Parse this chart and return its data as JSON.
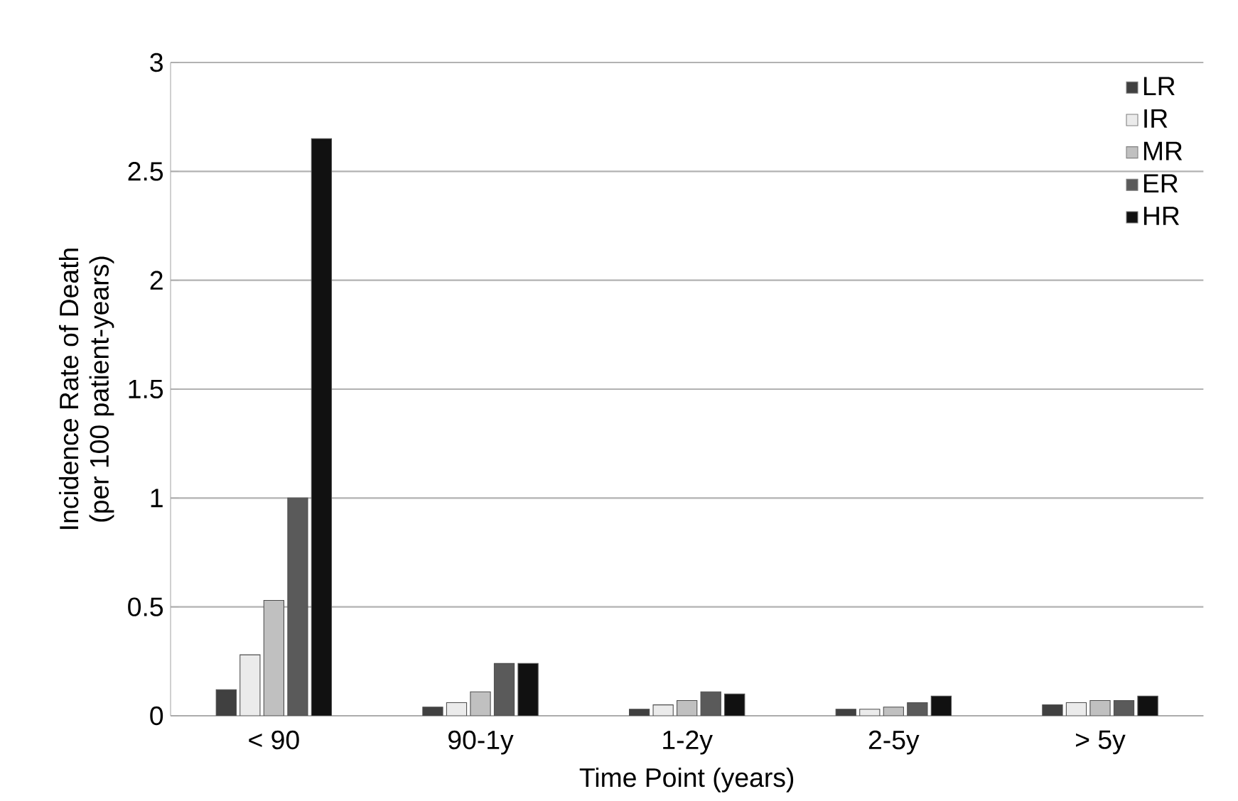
{
  "chart_data": {
    "type": "bar",
    "xlabel": "Time Point (years)",
    "ylabel": "Incidence Rate of Death\n(per 100 patient-years)",
    "categories": [
      "< 90",
      "90-1y",
      "1-2y",
      "2-5y",
      "> 5y"
    ],
    "series": [
      {
        "name": "LR",
        "color": "#404040",
        "values": [
          0.12,
          0.04,
          0.03,
          0.03,
          0.05
        ]
      },
      {
        "name": "IR",
        "color": "#ebebeb",
        "values": [
          0.28,
          0.06,
          0.05,
          0.03,
          0.06
        ]
      },
      {
        "name": "MR",
        "color": "#c0c0c0",
        "values": [
          0.53,
          0.11,
          0.07,
          0.04,
          0.07
        ]
      },
      {
        "name": "ER",
        "color": "#5a5a5a",
        "values": [
          1.0,
          0.24,
          0.11,
          0.06,
          0.07
        ]
      },
      {
        "name": "HR",
        "color": "#111111",
        "values": [
          2.65,
          0.24,
          0.1,
          0.09,
          0.09
        ]
      }
    ],
    "ylim": [
      0,
      3
    ],
    "yticks": [
      0,
      0.5,
      1,
      1.5,
      2,
      2.5,
      3
    ],
    "grid": "y",
    "legend": "top right"
  }
}
